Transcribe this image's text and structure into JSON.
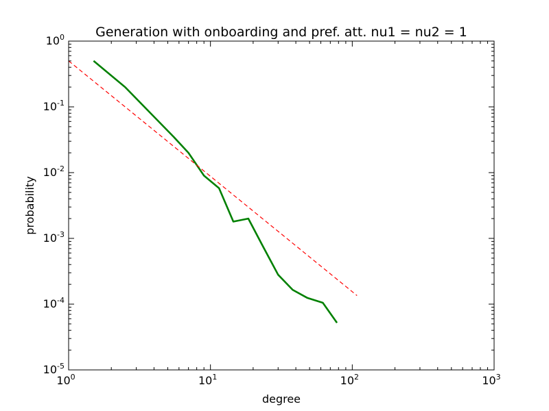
{
  "chart_data": {
    "type": "line",
    "title": "Generation with onboarding and pref. att. nu1 = nu2 = 1",
    "xlabel": "degree",
    "ylabel": "probability",
    "xscale": "log",
    "yscale": "log",
    "xlim": [
      1,
      1000
    ],
    "ylim": [
      1e-05,
      1
    ],
    "grid": false,
    "x_tick_labels": [
      {
        "base": "10",
        "exp": "0"
      },
      {
        "base": "10",
        "exp": "1"
      },
      {
        "base": "10",
        "exp": "2"
      },
      {
        "base": "10",
        "exp": "3"
      }
    ],
    "y_tick_labels": [
      {
        "base": "10",
        "exp": "0"
      },
      {
        "base": "10",
        "exp": "-1"
      },
      {
        "base": "10",
        "exp": "-2"
      },
      {
        "base": "10",
        "exp": "-3"
      },
      {
        "base": "10",
        "exp": "-4"
      },
      {
        "base": "10",
        "exp": "-5"
      }
    ],
    "series": [
      {
        "style": "solid",
        "color": "#008000",
        "x": [
          1.5,
          2.5,
          3.5,
          5.5,
          7.0,
          9.0,
          11.5,
          14.5,
          18.5,
          23.5,
          30.0,
          38.0,
          48.0,
          62.0,
          78.0
        ],
        "y": [
          0.5,
          0.2,
          0.095,
          0.035,
          0.02,
          0.009,
          0.0058,
          0.0018,
          0.002,
          0.00075,
          0.00028,
          0.000165,
          0.000125,
          0.000105,
          5.2e-05
        ]
      },
      {
        "style": "dashed",
        "color": "#ff0000",
        "x": [
          1,
          108
        ],
        "y": [
          0.5,
          0.000135
        ]
      }
    ]
  }
}
